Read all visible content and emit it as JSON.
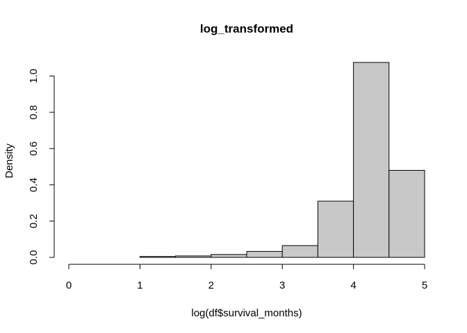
{
  "chart_data": {
    "type": "bar",
    "title": "log_transformed",
    "xlabel": "log(df$survival_months)",
    "ylabel": "Density",
    "bins": [
      {
        "start": 0.0,
        "end": 0.5,
        "density": 0.0
      },
      {
        "start": 0.5,
        "end": 1.0,
        "density": 0.0
      },
      {
        "start": 1.0,
        "end": 1.5,
        "density": 0.005
      },
      {
        "start": 1.5,
        "end": 2.0,
        "density": 0.008
      },
      {
        "start": 2.0,
        "end": 2.5,
        "density": 0.016
      },
      {
        "start": 2.5,
        "end": 3.0,
        "density": 0.033
      },
      {
        "start": 3.0,
        "end": 3.5,
        "density": 0.065
      },
      {
        "start": 3.5,
        "end": 4.0,
        "density": 0.31
      },
      {
        "start": 4.0,
        "end": 4.5,
        "density": 1.075
      },
      {
        "start": 4.5,
        "end": 5.0,
        "density": 0.48
      }
    ],
    "xticks": [
      "0",
      "1",
      "2",
      "3",
      "4",
      "5"
    ],
    "yticks": [
      "0.0",
      "0.2",
      "0.4",
      "0.6",
      "0.8",
      "1.0"
    ],
    "xlim": [
      0,
      5
    ],
    "ylim": [
      0,
      1.075
    ],
    "grid": false
  },
  "colors": {
    "bar_fill": "#c8c8c8",
    "bar_stroke": "#000000"
  }
}
